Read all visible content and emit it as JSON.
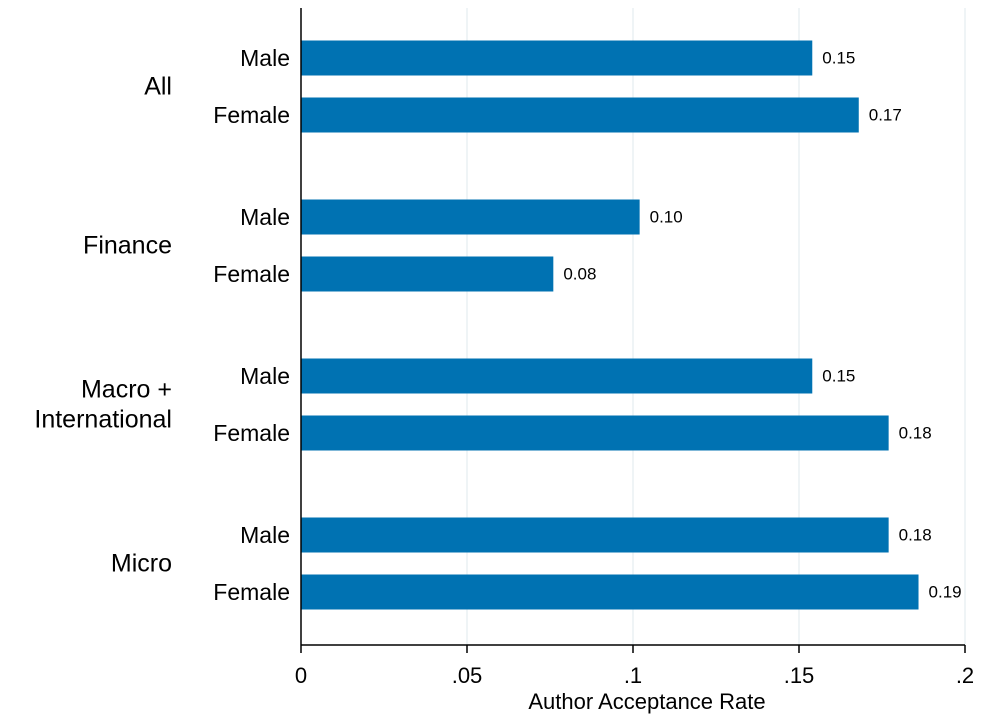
{
  "chart_data": {
    "type": "bar",
    "orientation": "horizontal",
    "xlabel": "Author Acceptance Rate",
    "xlim": [
      0,
      0.2
    ],
    "xticks": [
      {
        "value": 0,
        "label": "0"
      },
      {
        "value": 0.05,
        "label": ".05"
      },
      {
        "value": 0.1,
        "label": ".1"
      },
      {
        "value": 0.15,
        "label": ".15"
      },
      {
        "value": 0.2,
        "label": ".2"
      }
    ],
    "grid": "vertical",
    "bar_color": "#0072b2",
    "groups": [
      {
        "label_lines": [
          "All"
        ],
        "bars": [
          {
            "label": "Male",
            "value": 0.154,
            "value_label": "0.15"
          },
          {
            "label": "Female",
            "value": 0.168,
            "value_label": "0.17"
          }
        ]
      },
      {
        "label_lines": [
          "Finance"
        ],
        "bars": [
          {
            "label": "Male",
            "value": 0.102,
            "value_label": "0.10"
          },
          {
            "label": "Female",
            "value": 0.076,
            "value_label": "0.08"
          }
        ]
      },
      {
        "label_lines": [
          "Macro +",
          "International"
        ],
        "bars": [
          {
            "label": "Male",
            "value": 0.154,
            "value_label": "0.15"
          },
          {
            "label": "Female",
            "value": 0.177,
            "value_label": "0.18"
          }
        ]
      },
      {
        "label_lines": [
          "Micro"
        ],
        "bars": [
          {
            "label": "Male",
            "value": 0.177,
            "value_label": "0.18"
          },
          {
            "label": "Female",
            "value": 0.186,
            "value_label": "0.19"
          }
        ]
      }
    ]
  }
}
